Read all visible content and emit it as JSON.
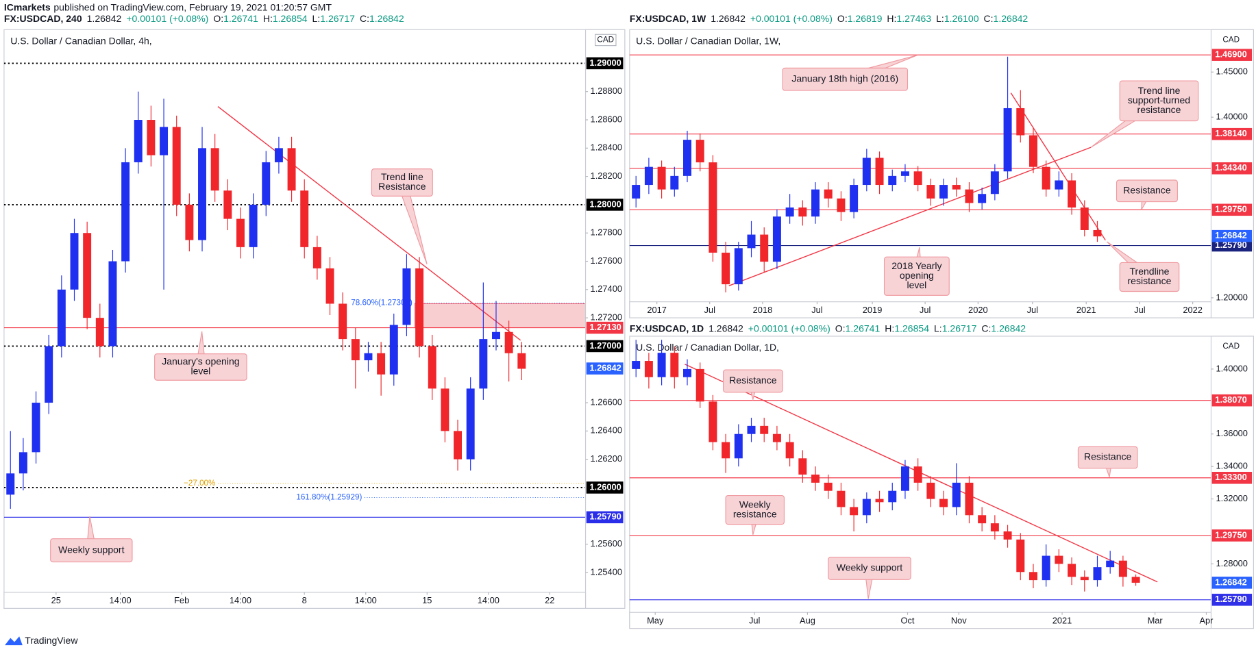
{
  "header": {
    "publisher": "ICmarkets",
    "published": "published on TradingView.com, February 19, 2021 01:20:57 GMT"
  },
  "footer": {
    "brand": "TradingView"
  },
  "chart_data": [
    {
      "type": "candlestick",
      "title": "U.S. Dollar / Canadian Dollar, 4h,",
      "currency": "CAD",
      "info": {
        "symbol": "FX:USDCAD, 240",
        "last": "1.26842",
        "change": "+0.00101 (+0.08%)",
        "ohlc": [
          {
            "label": "O:",
            "value": "1.26741"
          },
          {
            "label": "H:",
            "value": "1.26854"
          },
          {
            "label": "L:",
            "value": "1.26717"
          },
          {
            "label": "C:",
            "value": "1.26842"
          }
        ]
      },
      "up_color": "#1f30f0",
      "down_color": "#f0262b",
      "xlim": [
        -0.5,
        45
      ],
      "ylim": [
        1.25259,
        1.29238
      ],
      "xticks": [
        {
          "value": 3.57,
          "label": "25"
        },
        {
          "value": 8.6,
          "label": "14:00"
        },
        {
          "value": 13.4,
          "label": "Feb"
        },
        {
          "value": 18.0,
          "label": "14:00"
        },
        {
          "value": 23.0,
          "label": "8"
        },
        {
          "value": 27.8,
          "label": "14:00"
        },
        {
          "value": 32.6,
          "label": "15"
        },
        {
          "value": 37.4,
          "label": "14:00"
        },
        {
          "value": 42.2,
          "label": "22"
        }
      ],
      "yticks": [
        {
          "value": 1.254,
          "label": "1.25400"
        },
        {
          "value": 1.256,
          "label": "1.25600"
        },
        {
          "value": 1.262,
          "label": "1.26200"
        },
        {
          "value": 1.264,
          "label": "1.26400"
        },
        {
          "value": 1.266,
          "label": "1.26600"
        },
        {
          "value": 1.272,
          "label": "1.27200"
        },
        {
          "value": 1.274,
          "label": "1.27400"
        },
        {
          "value": 1.276,
          "label": "1.27600"
        },
        {
          "value": 1.278,
          "label": "1.27800"
        },
        {
          "value": 1.282,
          "label": "1.28200"
        },
        {
          "value": 1.284,
          "label": "1.28400"
        },
        {
          "value": 1.286,
          "label": "1.28600"
        },
        {
          "value": 1.288,
          "label": "1.28800"
        }
      ],
      "candles": {
        "open": [
          1.2595,
          1.261,
          1.2625,
          1.266,
          1.27,
          1.274,
          1.278,
          1.272,
          1.27,
          1.276,
          1.283,
          1.286,
          1.2835,
          1.2855,
          1.28,
          1.2775,
          1.284,
          1.281,
          1.279,
          1.277,
          1.28,
          1.283,
          1.284,
          1.281,
          1.277,
          1.2755,
          1.273,
          1.2705,
          1.269,
          1.2695,
          1.268,
          1.2715,
          1.2755,
          1.27,
          1.267,
          1.264,
          1.262,
          1.267,
          1.2705,
          1.271,
          1.2695
        ],
        "high": [
          1.264,
          1.2635,
          1.2668,
          1.2708,
          1.275,
          1.279,
          1.2788,
          1.273,
          1.2768,
          1.284,
          1.288,
          1.287,
          1.2875,
          1.2863,
          1.2808,
          1.2855,
          1.285,
          1.2818,
          1.2798,
          1.2808,
          1.2838,
          1.2848,
          1.2848,
          1.2818,
          1.2778,
          1.2763,
          1.2738,
          1.2713,
          1.2703,
          1.2703,
          1.2723,
          1.2765,
          1.2763,
          1.2708,
          1.2678,
          1.2648,
          1.2678,
          1.2745,
          1.2732,
          1.2718,
          1.2703
        ],
        "low": [
          1.2585,
          1.2598,
          1.2617,
          1.2652,
          1.2692,
          1.2732,
          1.2712,
          1.2692,
          1.2692,
          1.2752,
          1.2822,
          1.2827,
          1.274,
          1.2792,
          1.2767,
          1.2767,
          1.2802,
          1.2782,
          1.2762,
          1.2762,
          1.2792,
          1.2822,
          1.2802,
          1.2762,
          1.2747,
          1.2722,
          1.2697,
          1.267,
          1.2682,
          1.2665,
          1.2672,
          1.2707,
          1.2692,
          1.2662,
          1.2632,
          1.2612,
          1.2612,
          1.2662,
          1.2697,
          1.2675,
          1.2676
        ],
        "close": [
          1.261,
          1.2625,
          1.266,
          1.27,
          1.274,
          1.278,
          1.272,
          1.27,
          1.276,
          1.283,
          1.286,
          1.2835,
          1.2855,
          1.28,
          1.2775,
          1.284,
          1.281,
          1.279,
          1.277,
          1.28,
          1.283,
          1.284,
          1.281,
          1.277,
          1.2755,
          1.273,
          1.2705,
          1.269,
          1.2695,
          1.268,
          1.2715,
          1.2755,
          1.27,
          1.267,
          1.264,
          1.262,
          1.267,
          1.2705,
          1.271,
          1.2695,
          1.2684
        ]
      },
      "levels": [
        {
          "value": 1.29,
          "label": "1.29000",
          "color": "#000000",
          "style": "dotted"
        },
        {
          "value": 1.28,
          "label": "1.28000",
          "color": "#000000",
          "style": "dotted"
        },
        {
          "value": 1.2713,
          "label": "1.27130",
          "color": "#f23645",
          "style": "solid"
        },
        {
          "value": 1.27,
          "label": "1.27000",
          "color": "#000000",
          "style": "dotted"
        },
        {
          "value": 1.26,
          "label": "1.26000",
          "color": "#000000",
          "style": "dotted"
        },
        {
          "value": 1.2579,
          "label": "1.25790",
          "color": "#2a2ee8",
          "style": "solid"
        }
      ],
      "last_price": {
        "value": 1.26842,
        "label": "1.26842",
        "color": "#2962ff"
      },
      "zone": {
        "start": 31.64,
        "low": 1.2713,
        "high": 1.273,
        "color": "#f7c9cc"
      },
      "fib_levels": [
        {
          "value": 1.27305,
          "label": "78.60%(1.27305)",
          "start": 31.64,
          "color": "#2962ff"
        },
        {
          "value": 1.2603,
          "label": "−27.00%",
          "start": 16.23,
          "color": "#e0a100"
        },
        {
          "value": 1.25929,
          "label": "161.80%(1.25929)",
          "start": 27.7,
          "color": "#2962ff"
        }
      ],
      "trend_lines": [
        {
          "x": [
            16.23,
            39.91
          ],
          "y": [
            1.28694,
            1.27042
          ],
          "color": "#f23645"
        }
      ],
      "annotations": [
        [
          "Trend line",
          "Resistance"
        ],
        [
          "January's opening",
          "level"
        ],
        [
          "Weekly support"
        ]
      ]
    },
    {
      "type": "candlestick",
      "title": "U.S. Dollar / Canadian Dollar, 1W,",
      "currency": "CAD",
      "info": {
        "symbol": "FX:USDCAD, 1W",
        "last": "1.26842",
        "change": "+0.00101 (+0.08%)",
        "ohlc": [
          {
            "label": "O:",
            "value": "1.26819"
          },
          {
            "label": "H:",
            "value": "1.27463"
          },
          {
            "label": "L:",
            "value": "1.26100"
          },
          {
            "label": "C:",
            "value": "1.26842"
          }
        ]
      },
      "up_color": "#1f30f0",
      "down_color": "#f0262b",
      "xlim": [
        -0.5,
        44.875
      ],
      "ylim": [
        1.1956,
        1.497
      ],
      "xticks": [
        {
          "value": 1.63,
          "label": "2017"
        },
        {
          "value": 5.75,
          "label": "Jul"
        },
        {
          "value": 9.88,
          "label": "2018"
        },
        {
          "value": 14.13,
          "label": "Jul"
        },
        {
          "value": 18.44,
          "label": "2019"
        },
        {
          "value": 22.56,
          "label": "Jul"
        },
        {
          "value": 26.69,
          "label": "2020"
        },
        {
          "value": 30.94,
          "label": "Jul"
        },
        {
          "value": 35.13,
          "label": "2021"
        },
        {
          "value": 39.31,
          "label": "Jul"
        },
        {
          "value": 43.44,
          "label": "2022"
        }
      ],
      "yticks": [
        {
          "value": 1.2,
          "label": "1.20000"
        },
        {
          "value": 1.4,
          "label": "1.40000"
        },
        {
          "value": 1.45,
          "label": "1.45000"
        }
      ],
      "candles": {
        "open": [
          1.31,
          1.325,
          1.345,
          1.32,
          1.335,
          1.375,
          1.35,
          1.25,
          1.215,
          1.255,
          1.27,
          1.24,
          1.29,
          1.3,
          1.29,
          1.32,
          1.31,
          1.295,
          1.325,
          1.355,
          1.325,
          1.335,
          1.34,
          1.325,
          1.31,
          1.325,
          1.32,
          1.305,
          1.315,
          1.34,
          1.41,
          1.38,
          1.345,
          1.32,
          1.33,
          1.3,
          1.275
        ],
        "high": [
          1.335,
          1.355,
          1.352,
          1.345,
          1.385,
          1.382,
          1.358,
          1.262,
          1.262,
          1.285,
          1.278,
          1.298,
          1.315,
          1.308,
          1.328,
          1.328,
          1.318,
          1.332,
          1.365,
          1.362,
          1.342,
          1.348,
          1.346,
          1.332,
          1.332,
          1.333,
          1.328,
          1.322,
          1.348,
          1.467,
          1.43,
          1.388,
          1.352,
          1.34,
          1.338,
          1.308,
          1.285
        ],
        "low": [
          1.3,
          1.315,
          1.31,
          1.312,
          1.328,
          1.34,
          1.24,
          1.206,
          1.208,
          1.245,
          1.228,
          1.232,
          1.282,
          1.28,
          1.282,
          1.3,
          1.285,
          1.288,
          1.318,
          1.315,
          1.318,
          1.328,
          1.318,
          1.302,
          1.302,
          1.312,
          1.295,
          1.298,
          1.308,
          1.332,
          1.372,
          1.338,
          1.312,
          1.312,
          1.292,
          1.268,
          1.262
        ],
        "close": [
          1.325,
          1.345,
          1.32,
          1.335,
          1.375,
          1.35,
          1.25,
          1.215,
          1.255,
          1.27,
          1.24,
          1.29,
          1.3,
          1.29,
          1.32,
          1.31,
          1.295,
          1.325,
          1.355,
          1.325,
          1.335,
          1.34,
          1.325,
          1.31,
          1.325,
          1.32,
          1.305,
          1.315,
          1.34,
          1.41,
          1.38,
          1.345,
          1.32,
          1.33,
          1.3,
          1.275,
          1.268
        ]
      },
      "levels": [
        {
          "value": 1.469,
          "label": "1.46900",
          "color": "#f23645",
          "style": "solid"
        },
        {
          "value": 1.3814,
          "label": "1.38140",
          "color": "#f23645",
          "style": "solid"
        },
        {
          "value": 1.3434,
          "label": "1.34340",
          "color": "#f23645",
          "style": "solid"
        },
        {
          "value": 1.2975,
          "label": "1.29750",
          "color": "#f23645",
          "style": "solid"
        },
        {
          "value": 1.2579,
          "label": "1.25790",
          "color": "#1a237e",
          "style": "solid"
        }
      ],
      "last_price": {
        "value": 1.26842,
        "label": "1.26842",
        "color": "#2962ff"
      },
      "trend_lines": [
        {
          "x": [
            29.25,
            36.63
          ],
          "y": [
            1.42695,
            1.26383
          ],
          "color": "#f23645"
        },
        {
          "x": [
            7.25,
            35.5
          ],
          "y": [
            1.2133,
            1.36667
          ],
          "color": "#f23645"
        }
      ],
      "annotations": [
        [
          "January 18th high (2016)"
        ],
        [
          "Trend line",
          "support-turned",
          "resistance"
        ],
        [
          "Resistance"
        ],
        [
          "2018 Yearly",
          "opening",
          "level"
        ],
        [
          "Trendline",
          "resistance"
        ]
      ]
    },
    {
      "type": "candlestick",
      "title": "U.S. Dollar / Canadian Dollar, 1D,",
      "currency": "CAD",
      "info": {
        "symbol": "FX:USDCAD, 1D",
        "last": "1.26842",
        "change": "+0.00101 (+0.08%)",
        "ohlc": [
          {
            "label": "O:",
            "value": "1.26741"
          },
          {
            "label": "H:",
            "value": "1.26854"
          },
          {
            "label": "L:",
            "value": "1.26717"
          },
          {
            "label": "C:",
            "value": "1.26842"
          }
        ]
      },
      "up_color": "#1f30f0",
      "down_color": "#f0262b",
      "xlim": [
        -0.5,
        44.875
      ],
      "ylim": [
        1.25014,
        1.42022
      ],
      "xticks": [
        {
          "value": 1.5,
          "label": "May"
        },
        {
          "value": 9.25,
          "label": "Jul"
        },
        {
          "value": 13.38,
          "label": "Aug"
        },
        {
          "value": 21.19,
          "label": "Oct"
        },
        {
          "value": 25.19,
          "label": "Nov"
        },
        {
          "value": 33.25,
          "label": "2021"
        },
        {
          "value": 40.5,
          "label": "Mar"
        },
        {
          "value": 44.5,
          "label": "Apr"
        }
      ],
      "yticks": [
        {
          "value": 1.28,
          "label": "1.28000"
        },
        {
          "value": 1.32,
          "label": "1.32000"
        },
        {
          "value": 1.34,
          "label": "1.34000"
        },
        {
          "value": 1.36,
          "label": "1.36000"
        },
        {
          "value": 1.4,
          "label": "1.40000"
        }
      ],
      "candles": {
        "open": [
          1.4,
          1.405,
          1.395,
          1.41,
          1.395,
          1.4,
          1.38,
          1.355,
          1.345,
          1.36,
          1.365,
          1.36,
          1.355,
          1.345,
          1.335,
          1.33,
          1.325,
          1.315,
          1.31,
          1.32,
          1.318,
          1.325,
          1.34,
          1.33,
          1.32,
          1.315,
          1.33,
          1.31,
          1.305,
          1.3,
          1.295,
          1.275,
          1.27,
          1.285,
          1.28,
          1.272,
          1.27,
          1.278,
          1.282,
          1.272
        ],
        "high": [
          1.418,
          1.41,
          1.418,
          1.414,
          1.406,
          1.404,
          1.384,
          1.36,
          1.366,
          1.37,
          1.37,
          1.365,
          1.36,
          1.35,
          1.34,
          1.335,
          1.33,
          1.32,
          1.324,
          1.325,
          1.33,
          1.344,
          1.345,
          1.334,
          1.325,
          1.342,
          1.334,
          1.315,
          1.31,
          1.304,
          1.299,
          1.28,
          1.292,
          1.289,
          1.284,
          1.276,
          1.285,
          1.288,
          1.285,
          1.2735
        ],
        "low": [
          1.395,
          1.388,
          1.39,
          1.388,
          1.39,
          1.376,
          1.35,
          1.336,
          1.34,
          1.355,
          1.355,
          1.35,
          1.34,
          1.33,
          1.325,
          1.32,
          1.31,
          1.3,
          1.305,
          1.312,
          1.313,
          1.32,
          1.325,
          1.315,
          1.31,
          1.31,
          1.305,
          1.3,
          1.295,
          1.29,
          1.27,
          1.265,
          1.266,
          1.275,
          1.267,
          1.263,
          1.266,
          1.274,
          1.266,
          1.2665
        ],
        "close": [
          1.405,
          1.395,
          1.41,
          1.395,
          1.4,
          1.38,
          1.355,
          1.345,
          1.36,
          1.365,
          1.36,
          1.355,
          1.345,
          1.335,
          1.33,
          1.325,
          1.315,
          1.31,
          1.32,
          1.318,
          1.325,
          1.34,
          1.33,
          1.32,
          1.315,
          1.33,
          1.31,
          1.305,
          1.3,
          1.295,
          1.275,
          1.27,
          1.285,
          1.28,
          1.272,
          1.27,
          1.278,
          1.282,
          1.272,
          1.2684
        ]
      },
      "levels": [
        {
          "value": 1.3807,
          "label": "1.38070",
          "color": "#f23645",
          "style": "solid"
        },
        {
          "value": 1.333,
          "label": "1.33300",
          "color": "#f23645",
          "style": "solid"
        },
        {
          "value": 1.2975,
          "label": "1.29750",
          "color": "#f23645",
          "style": "solid"
        },
        {
          "value": 1.2579,
          "label": "1.25790",
          "color": "#3030e8",
          "style": "solid"
        }
      ],
      "last_price": {
        "value": 1.26842,
        "label": "1.26842",
        "color": "#2962ff"
      },
      "trend_lines": [
        {
          "x": [
            3.81,
            40.69
          ],
          "y": [
            1.40296,
            1.26888
          ],
          "color": "#f23645"
        }
      ],
      "annotations": [
        [
          "Resistance"
        ],
        [
          "Resistance"
        ],
        [
          "Weekly",
          "resistance"
        ],
        [
          "Weekly support"
        ]
      ]
    }
  ]
}
